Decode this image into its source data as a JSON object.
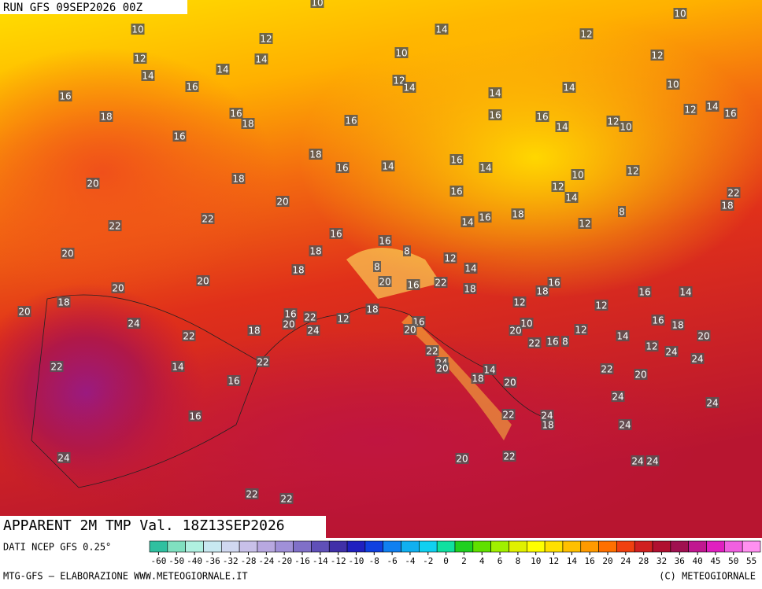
{
  "header": {
    "run": "RUN GFS 09SEP2026 00Z",
    "title": "APPARENT 2M TMP Val. 18Z13SEP2026"
  },
  "footer": {
    "source": "DATI NCEP GFS 0.25°",
    "credit": "MTG-GFS — ELABORAZIONE WWW.METEOGIORNALE.IT",
    "copyright": "(C) METEOGIORNALE"
  },
  "colorbar": {
    "ticks": [
      -60,
      -50,
      -40,
      -36,
      -32,
      -28,
      -24,
      -20,
      -16,
      -14,
      -12,
      -10,
      -8,
      -6,
      -4,
      -2,
      0,
      2,
      4,
      6,
      8,
      10,
      12,
      14,
      16,
      20,
      24,
      28,
      32,
      36,
      40,
      45,
      50,
      55
    ]
  },
  "map_labels": [
    10,
    10,
    12,
    14,
    10,
    12,
    12,
    14,
    10,
    12,
    14,
    14,
    16,
    12,
    14,
    14,
    10,
    16,
    14,
    12,
    14,
    16,
    18,
    16,
    18,
    16,
    16,
    16,
    14,
    12,
    10,
    16,
    18,
    16,
    14,
    16,
    14,
    10,
    12,
    20,
    18,
    16,
    12,
    14,
    22,
    18,
    20,
    22,
    16,
    18,
    14,
    8,
    12,
    22,
    16,
    16,
    18,
    20,
    8,
    12,
    14,
    18,
    8,
    20,
    20,
    16,
    20,
    22,
    18,
    16,
    18,
    16,
    14,
    18,
    20,
    12,
    12,
    24,
    16,
    20,
    22,
    24,
    12,
    18,
    16,
    20,
    20,
    10,
    22,
    16,
    8,
    12,
    14,
    16,
    18,
    12,
    24,
    20,
    22,
    18,
    22,
    24,
    20,
    14,
    18,
    20,
    22,
    22,
    14,
    22,
    20,
    24,
    16,
    24,
    24,
    16,
    22,
    24,
    18,
    24,
    24,
    20,
    22,
    24,
    24,
    22,
    22
  ]
}
